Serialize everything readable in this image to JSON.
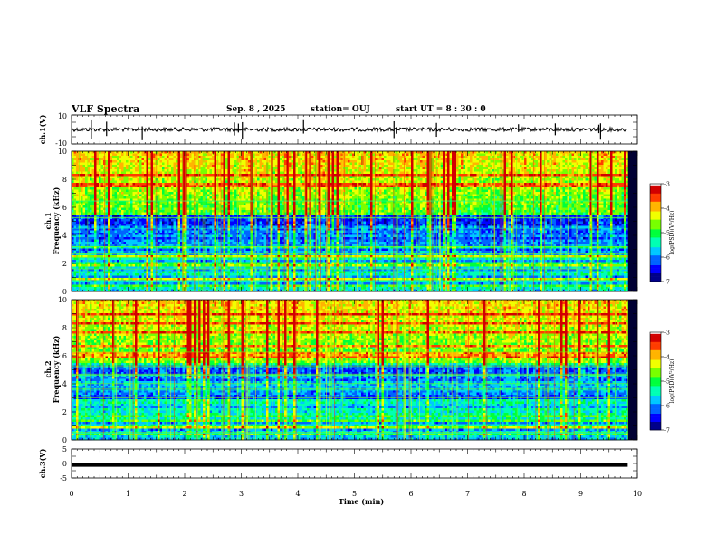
{
  "header": {
    "title": "VLF Spectra",
    "date": "Sep. 8  , 2025",
    "station": "station= OUJ",
    "start": "start  UT  =   8  : 30 : 0"
  },
  "chart_data": [
    {
      "type": "line",
      "name": "ch1-waveform",
      "ylabel": "ch.1(V)",
      "ylim": [
        -10,
        10
      ],
      "ytick_labels": [
        "10",
        "-10"
      ],
      "baseline": 0,
      "spikes_min": [
        0.35,
        0.62,
        1.25,
        2.88,
        2.95,
        3.02,
        4.1,
        5.7,
        5.74,
        6.45,
        7.9,
        8.55,
        9.32,
        9.35
      ]
    },
    {
      "type": "heatmap",
      "name": "ch1-spectrogram",
      "ylabel": "ch.1\nFrequency  (kHz)",
      "ylim": [
        0,
        10
      ],
      "ytick_labels": [
        "0",
        "2",
        "4",
        "6",
        "8",
        "10"
      ],
      "colorbar_label": "log(PSD)(V²/Hz)",
      "colorbar_range": [
        -7,
        -3
      ],
      "colorbar_ticks": [
        "-3",
        "-4",
        "-5",
        "-6",
        "-7"
      ]
    },
    {
      "type": "heatmap",
      "name": "ch2-spectrogram",
      "ylabel": "ch.2\nFrequency  (kHz)",
      "ylim": [
        0,
        10
      ],
      "ytick_labels": [
        "0",
        "2",
        "4",
        "6",
        "8",
        "10"
      ],
      "colorbar_label": "log(PSD)(V²/Hz)",
      "colorbar_range": [
        -7,
        -3
      ],
      "colorbar_ticks": [
        "-3",
        "-4",
        "-5",
        "-6",
        "-7"
      ]
    },
    {
      "type": "line",
      "name": "ch3-waveform",
      "ylabel": "ch.3(V)",
      "ylim": [
        -5,
        5
      ],
      "ytick_labels": [
        "5",
        "0",
        "-5"
      ],
      "level": -0.5
    }
  ],
  "xaxis": {
    "label": "Time  (min)",
    "xlim": [
      0,
      10
    ],
    "tick_labels": [
      "0",
      "1",
      "2",
      "3",
      "4",
      "5",
      "6",
      "7",
      "8",
      "9",
      "10"
    ],
    "data_end_min": 9.83
  },
  "colors": {
    "colormap": [
      "#000033",
      "#00008b",
      "#0000ff",
      "#0064ff",
      "#00c8ff",
      "#00ffb4",
      "#00ff3c",
      "#78ff00",
      "#f0ff00",
      "#ffb400",
      "#ff3c00",
      "#d20000",
      "#ffffff"
    ]
  }
}
